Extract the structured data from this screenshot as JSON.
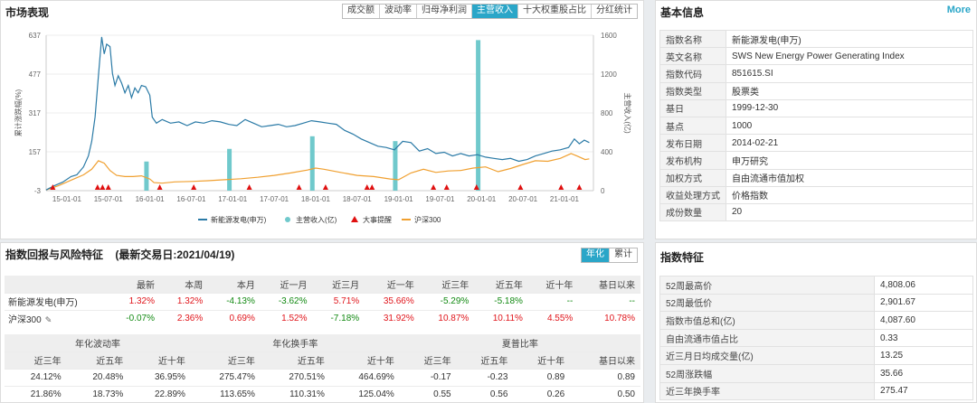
{
  "market": {
    "title": "市场表现",
    "tabs": [
      {
        "label": "成交额",
        "active": false
      },
      {
        "label": "波动率",
        "active": false
      },
      {
        "label": "归母净利润",
        "active": false
      },
      {
        "label": "主营收入",
        "active": true
      },
      {
        "label": "十大权重股占比",
        "active": false
      },
      {
        "label": "分红统计",
        "active": false
      }
    ]
  },
  "chart_data": {
    "type": "line",
    "ylabel_left": "累计涨跌幅(%)",
    "ylabel_right": "主营收入(亿)",
    "y_left_ticks": [
      "637",
      "477",
      "317",
      "157",
      "-3"
    ],
    "y_right_ticks": [
      "1600",
      "1200",
      "800",
      "400",
      "0"
    ],
    "x_ticks": [
      "15-01-01",
      "15-07-01",
      "16-01-01",
      "16-07-01",
      "17-01-01",
      "17-07-01",
      "18-01-01",
      "18-07-01",
      "19-01-01",
      "19-07-01",
      "20-01-01",
      "20-07-01",
      "21-01-01"
    ],
    "legend": [
      "新能源发电(申万)",
      "主营收入(亿)",
      "大事提醒",
      "沪深300"
    ],
    "series_colors": {
      "index": "#2a7aa6",
      "revenue": "#70c9cc",
      "event": "#e01010",
      "hs300": "#f0a030"
    },
    "index_series": [
      [
        2014.75,
        0
      ],
      [
        2014.85,
        18
      ],
      [
        2014.95,
        32
      ],
      [
        2015.05,
        55
      ],
      [
        2015.12,
        62
      ],
      [
        2015.2,
        95
      ],
      [
        2015.26,
        140
      ],
      [
        2015.3,
        200
      ],
      [
        2015.34,
        300
      ],
      [
        2015.38,
        470
      ],
      [
        2015.42,
        630
      ],
      [
        2015.45,
        560
      ],
      [
        2015.48,
        600
      ],
      [
        2015.52,
        590
      ],
      [
        2015.55,
        480
      ],
      [
        2015.58,
        430
      ],
      [
        2015.62,
        470
      ],
      [
        2015.66,
        440
      ],
      [
        2015.7,
        400
      ],
      [
        2015.74,
        430
      ],
      [
        2015.78,
        380
      ],
      [
        2015.82,
        420
      ],
      [
        2015.86,
        400
      ],
      [
        2015.9,
        430
      ],
      [
        2015.95,
        425
      ],
      [
        2016.0,
        390
      ],
      [
        2016.03,
        300
      ],
      [
        2016.08,
        275
      ],
      [
        2016.15,
        290
      ],
      [
        2016.25,
        275
      ],
      [
        2016.35,
        280
      ],
      [
        2016.45,
        265
      ],
      [
        2016.55,
        280
      ],
      [
        2016.65,
        275
      ],
      [
        2016.75,
        285
      ],
      [
        2016.85,
        280
      ],
      [
        2016.95,
        270
      ],
      [
        2017.05,
        265
      ],
      [
        2017.15,
        290
      ],
      [
        2017.25,
        275
      ],
      [
        2017.35,
        260
      ],
      [
        2017.45,
        265
      ],
      [
        2017.55,
        270
      ],
      [
        2017.65,
        260
      ],
      [
        2017.75,
        265
      ],
      [
        2017.85,
        275
      ],
      [
        2017.95,
        285
      ],
      [
        2018.05,
        280
      ],
      [
        2018.15,
        275
      ],
      [
        2018.25,
        270
      ],
      [
        2018.35,
        245
      ],
      [
        2018.45,
        230
      ],
      [
        2018.55,
        210
      ],
      [
        2018.65,
        195
      ],
      [
        2018.75,
        180
      ],
      [
        2018.85,
        175
      ],
      [
        2018.95,
        165
      ],
      [
        2019.05,
        200
      ],
      [
        2019.15,
        195
      ],
      [
        2019.25,
        160
      ],
      [
        2019.35,
        170
      ],
      [
        2019.45,
        150
      ],
      [
        2019.55,
        155
      ],
      [
        2019.65,
        140
      ],
      [
        2019.75,
        150
      ],
      [
        2019.85,
        140
      ],
      [
        2019.95,
        145
      ],
      [
        2020.05,
        135
      ],
      [
        2020.15,
        130
      ],
      [
        2020.25,
        125
      ],
      [
        2020.35,
        130
      ],
      [
        2020.45,
        118
      ],
      [
        2020.55,
        125
      ],
      [
        2020.65,
        140
      ],
      [
        2020.75,
        150
      ],
      [
        2020.85,
        160
      ],
      [
        2020.95,
        165
      ],
      [
        2021.05,
        175
      ],
      [
        2021.12,
        210
      ],
      [
        2021.18,
        190
      ],
      [
        2021.24,
        205
      ],
      [
        2021.3,
        195
      ]
    ],
    "hs300_series": [
      [
        2014.75,
        0
      ],
      [
        2014.9,
        18
      ],
      [
        2015.05,
        40
      ],
      [
        2015.2,
        62
      ],
      [
        2015.3,
        85
      ],
      [
        2015.38,
        120
      ],
      [
        2015.45,
        110
      ],
      [
        2015.52,
        80
      ],
      [
        2015.6,
        60
      ],
      [
        2015.7,
        55
      ],
      [
        2015.8,
        55
      ],
      [
        2015.9,
        58
      ],
      [
        2016.0,
        45
      ],
      [
        2016.05,
        30
      ],
      [
        2016.15,
        28
      ],
      [
        2016.3,
        33
      ],
      [
        2016.5,
        35
      ],
      [
        2016.7,
        38
      ],
      [
        2016.9,
        42
      ],
      [
        2017.1,
        46
      ],
      [
        2017.3,
        52
      ],
      [
        2017.5,
        60
      ],
      [
        2017.7,
        70
      ],
      [
        2017.9,
        82
      ],
      [
        2018.0,
        90
      ],
      [
        2018.1,
        85
      ],
      [
        2018.3,
        72
      ],
      [
        2018.5,
        60
      ],
      [
        2018.7,
        55
      ],
      [
        2018.9,
        45
      ],
      [
        2019.0,
        42
      ],
      [
        2019.15,
        70
      ],
      [
        2019.3,
        85
      ],
      [
        2019.45,
        72
      ],
      [
        2019.6,
        78
      ],
      [
        2019.75,
        80
      ],
      [
        2019.9,
        90
      ],
      [
        2020.05,
        95
      ],
      [
        2020.2,
        75
      ],
      [
        2020.35,
        88
      ],
      [
        2020.5,
        105
      ],
      [
        2020.65,
        120
      ],
      [
        2020.8,
        118
      ],
      [
        2020.95,
        130
      ],
      [
        2021.08,
        150
      ],
      [
        2021.15,
        140
      ],
      [
        2021.25,
        125
      ],
      [
        2021.3,
        128
      ]
    ],
    "revenue_bars": [
      [
        2015.96,
        300
      ],
      [
        2016.96,
        430
      ],
      [
        2017.96,
        560
      ],
      [
        2018.96,
        510
      ],
      [
        2019.96,
        1550
      ]
    ],
    "events": [
      2014.83,
      2015.37,
      2015.43,
      2015.5,
      2016.12,
      2016.53,
      2017.2,
      2017.8,
      2018.12,
      2018.62,
      2018.68,
      2019.42,
      2019.58,
      2019.94,
      2020.47,
      2020.96,
      2021.18
    ],
    "y_left_range": [
      -3,
      637
    ],
    "y_right_range": [
      0,
      1600
    ],
    "x_range": [
      2014.75,
      2021.35
    ]
  },
  "info": {
    "title": "基本信息",
    "more": "More",
    "rows": [
      {
        "k": "指数名称",
        "v": "新能源发电(申万)"
      },
      {
        "k": "英文名称",
        "v": "SWS New Energy Power Generating Index"
      },
      {
        "k": "指数代码",
        "v": "851615.SI"
      },
      {
        "k": "指数类型",
        "v": "股票类"
      },
      {
        "k": "基日",
        "v": "1999-12-30"
      },
      {
        "k": "基点",
        "v": "1000"
      },
      {
        "k": "发布日期",
        "v": "2014-02-21"
      },
      {
        "k": "发布机构",
        "v": "申万研究"
      },
      {
        "k": "加权方式",
        "v": "自由流通市值加权"
      },
      {
        "k": "收益处理方式",
        "v": "价格指数"
      },
      {
        "k": "成份数量",
        "v": "20"
      }
    ]
  },
  "returns": {
    "title": "指数回报与风险特征",
    "subtitle": "(最新交易日:2021/04/19)",
    "toggle": [
      {
        "label": "年化",
        "active": true
      },
      {
        "label": "累计",
        "active": false
      }
    ],
    "headers": [
      "",
      "最新",
      "本周",
      "本月",
      "近一月",
      "近三月",
      "近一年",
      "近三年",
      "近五年",
      "近十年",
      "基日以来"
    ],
    "rows": [
      {
        "name": "新能源发电(申万)",
        "vals": [
          "1.32%",
          "1.32%",
          "-4.13%",
          "-3.62%",
          "5.71%",
          "35.66%",
          "-5.29%",
          "-5.18%",
          "--",
          "--"
        ]
      },
      {
        "name": "沪深300",
        "vals": [
          "-0.07%",
          "2.36%",
          "0.69%",
          "1.52%",
          "-7.18%",
          "31.92%",
          "10.87%",
          "10.11%",
          "4.55%",
          "10.78%"
        ]
      }
    ],
    "group_headers": [
      "年化波动率",
      "年化换手率",
      "夏普比率"
    ],
    "sub_headers": [
      "近三年",
      "近五年",
      "近十年",
      "近三年",
      "近五年",
      "近十年",
      "近三年",
      "近五年",
      "近十年",
      "基日以来"
    ],
    "risk_rows": [
      [
        "24.12%",
        "20.48%",
        "36.95%",
        "275.47%",
        "270.51%",
        "464.69%",
        "-0.17",
        "-0.23",
        "0.89",
        "0.89"
      ],
      [
        "21.86%",
        "18.73%",
        "22.89%",
        "113.65%",
        "110.31%",
        "125.04%",
        "0.55",
        "0.56",
        "0.26",
        "0.50"
      ]
    ]
  },
  "features": {
    "title": "指数特征",
    "rows": [
      {
        "k": "52周最高价",
        "v": "4,808.06"
      },
      {
        "k": "52周最低价",
        "v": "2,901.67"
      },
      {
        "k": "指数市值总和(亿)",
        "v": "4,087.60"
      },
      {
        "k": "自由流通市值占比",
        "v": "0.33"
      },
      {
        "k": "近三月日均成交量(亿)",
        "v": "13.25"
      },
      {
        "k": "52周涨跌幅",
        "v": "35.66"
      },
      {
        "k": "近三年换手率",
        "v": "275.47"
      }
    ]
  }
}
